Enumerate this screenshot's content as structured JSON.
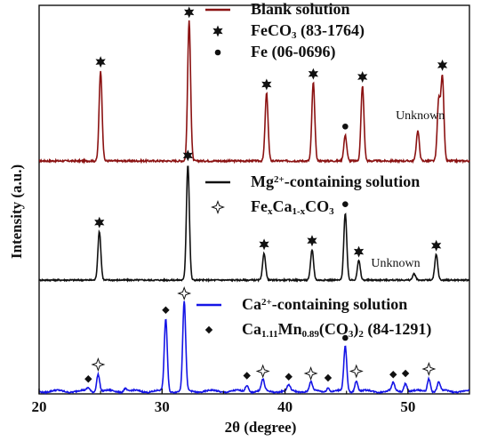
{
  "chart_data": {
    "type": "line",
    "title": "",
    "xlabel": "2θ (degree)",
    "ylabel": "Intensity (a.u.)",
    "xlim": [
      20,
      55
    ],
    "xticks": [
      "20",
      "30",
      "40",
      "50"
    ],
    "yticks_shown": false,
    "grid": false,
    "legend_placement": "inside each panel, upper center-right",
    "series": [
      {
        "name": "Blank solution",
        "color": "#8b1212",
        "peaks": [
          {
            "x": 25.0,
            "h": 0.6
          },
          {
            "x": 32.2,
            "h": 0.93
          },
          {
            "x": 38.5,
            "h": 0.45
          },
          {
            "x": 42.3,
            "h": 0.52
          },
          {
            "x": 44.9,
            "h": 0.17
          },
          {
            "x": 46.3,
            "h": 0.5
          },
          {
            "x": 50.8,
            "h": 0.2
          },
          {
            "x": 52.5,
            "h": 0.4
          },
          {
            "x": 52.8,
            "h": 0.56
          }
        ],
        "markers": [
          {
            "x": 25.0,
            "symbol": "star"
          },
          {
            "x": 32.2,
            "symbol": "star"
          },
          {
            "x": 38.5,
            "symbol": "star"
          },
          {
            "x": 42.3,
            "symbol": "star"
          },
          {
            "x": 44.9,
            "symbol": "dot"
          },
          {
            "x": 46.3,
            "symbol": "star"
          },
          {
            "x": 52.8,
            "symbol": "star"
          }
        ],
        "annotation": {
          "text": "Unknown",
          "x": 51.0
        }
      },
      {
        "name": "Mg2+-containing solution",
        "color": "#111111",
        "peaks": [
          {
            "x": 24.9,
            "h": 0.4
          },
          {
            "x": 32.1,
            "h": 0.95
          },
          {
            "x": 38.3,
            "h": 0.22
          },
          {
            "x": 42.2,
            "h": 0.25
          },
          {
            "x": 44.9,
            "h": 0.55
          },
          {
            "x": 46.0,
            "h": 0.16
          },
          {
            "x": 50.5,
            "h": 0.05
          },
          {
            "x": 52.3,
            "h": 0.21
          }
        ],
        "markers": [
          {
            "x": 24.9,
            "symbol": "star"
          },
          {
            "x": 32.1,
            "symbol": "star"
          },
          {
            "x": 38.3,
            "symbol": "star"
          },
          {
            "x": 42.2,
            "symbol": "star"
          },
          {
            "x": 44.9,
            "symbol": "dot"
          },
          {
            "x": 46.0,
            "symbol": "star"
          },
          {
            "x": 52.3,
            "symbol": "star"
          }
        ],
        "annotation": {
          "text": "Unknown",
          "x": 49.0
        }
      },
      {
        "name": "Ca2+-containing solution",
        "color": "#1515e6",
        "peaks": [
          {
            "x": 24.0,
            "h": 0.03
          },
          {
            "x": 24.8,
            "h": 0.16
          },
          {
            "x": 27.0,
            "h": 0.03
          },
          {
            "x": 30.3,
            "h": 0.65
          },
          {
            "x": 31.8,
            "h": 0.8
          },
          {
            "x": 36.9,
            "h": 0.06
          },
          {
            "x": 38.2,
            "h": 0.1
          },
          {
            "x": 40.3,
            "h": 0.05
          },
          {
            "x": 42.1,
            "h": 0.08
          },
          {
            "x": 43.5,
            "h": 0.04
          },
          {
            "x": 44.9,
            "h": 0.4
          },
          {
            "x": 45.8,
            "h": 0.1
          },
          {
            "x": 48.8,
            "h": 0.07
          },
          {
            "x": 49.8,
            "h": 0.08
          },
          {
            "x": 51.7,
            "h": 0.12
          },
          {
            "x": 52.5,
            "h": 0.08
          }
        ],
        "markers": [
          {
            "x": 24.0,
            "symbol": "diamond"
          },
          {
            "x": 24.8,
            "symbol": "openstar"
          },
          {
            "x": 30.3,
            "symbol": "diamond"
          },
          {
            "x": 31.8,
            "symbol": "openstar"
          },
          {
            "x": 36.9,
            "symbol": "diamond"
          },
          {
            "x": 38.2,
            "symbol": "openstar"
          },
          {
            "x": 40.3,
            "symbol": "diamond"
          },
          {
            "x": 42.1,
            "symbol": "openstar"
          },
          {
            "x": 43.5,
            "symbol": "diamond"
          },
          {
            "x": 44.9,
            "symbol": "dot"
          },
          {
            "x": 45.8,
            "symbol": "openstar"
          },
          {
            "x": 48.8,
            "symbol": "diamond"
          },
          {
            "x": 49.8,
            "symbol": "diamond"
          },
          {
            "x": 51.7,
            "symbol": "openstar"
          }
        ],
        "annotation": null
      }
    ],
    "legends": [
      {
        "panel": 0,
        "entries": [
          {
            "symbol": "line",
            "text": "Blank solution"
          },
          {
            "symbol": "star",
            "text": "FeCO3 (83-1764)"
          },
          {
            "symbol": "dot",
            "text": "Fe (06-0696)"
          }
        ]
      },
      {
        "panel": 1,
        "entries": [
          {
            "symbol": "line",
            "text": "Mg2+-containing solution"
          },
          {
            "symbol": "openstar",
            "text": "FexCa1-xCO3"
          }
        ]
      },
      {
        "panel": 2,
        "entries": [
          {
            "symbol": "line",
            "text": "Ca2+-containing solution"
          },
          {
            "symbol": "diamond",
            "text": "Ca1.11Mn0.89(CO3)2 (84-1291)"
          }
        ]
      }
    ]
  }
}
